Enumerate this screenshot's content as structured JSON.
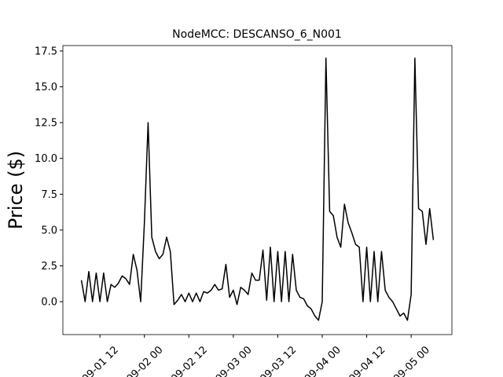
{
  "chart_data": {
    "type": "line",
    "title": "NodeMCC: DESCANSO_6_N001",
    "y_label": "Price ($)",
    "x": [
      "09-01 07",
      "09-01 08",
      "09-01 09",
      "09-01 10",
      "09-01 11",
      "09-01 12",
      "09-01 13",
      "09-01 14",
      "09-01 15",
      "09-01 16",
      "09-01 17",
      "09-01 18",
      "09-01 19",
      "09-01 20",
      "09-01 21",
      "09-01 22",
      "09-01 23",
      "09-02 00",
      "09-02 01",
      "09-02 02",
      "09-02 03",
      "09-02 04",
      "09-02 05",
      "09-02 06",
      "09-02 07",
      "09-02 08",
      "09-02 09",
      "09-02 10",
      "09-02 11",
      "09-02 12",
      "09-02 13",
      "09-02 14",
      "09-02 15",
      "09-02 16",
      "09-02 17",
      "09-02 18",
      "09-02 19",
      "09-02 20",
      "09-02 21",
      "09-02 22",
      "09-02 23",
      "09-03 00",
      "09-03 01",
      "09-03 02",
      "09-03 03",
      "09-03 04",
      "09-03 05",
      "09-03 06",
      "09-03 07",
      "09-03 08",
      "09-03 09",
      "09-03 10",
      "09-03 11",
      "09-03 12",
      "09-03 13",
      "09-03 14",
      "09-03 15",
      "09-03 16",
      "09-03 17",
      "09-03 18",
      "09-03 19",
      "09-03 20",
      "09-03 21",
      "09-03 22",
      "09-03 23",
      "09-04 00",
      "09-04 01",
      "09-04 02",
      "09-04 03",
      "09-04 04",
      "09-04 05",
      "09-04 06",
      "09-04 07",
      "09-04 08",
      "09-04 09",
      "09-04 10",
      "09-04 11",
      "09-04 12",
      "09-04 13",
      "09-04 14",
      "09-04 15",
      "09-04 16",
      "09-04 17",
      "09-04 18",
      "09-04 19",
      "09-04 20",
      "09-04 21",
      "09-04 22",
      "09-04 23",
      "09-05 00",
      "09-05 01",
      "09-05 02",
      "09-05 03",
      "09-05 04",
      "09-05 05",
      "09-05 06"
    ],
    "series": [
      {
        "color": "#000000",
        "values": [
          1.5,
          0,
          2.1,
          0,
          2.0,
          0,
          2.0,
          0,
          1.2,
          1.0,
          1.3,
          1.8,
          1.6,
          1.2,
          3.3,
          2.2,
          0,
          5.5,
          12.5,
          4.5,
          3.5,
          3.0,
          3.3,
          4.5,
          3.5,
          -0.2,
          0.1,
          0.5,
          0,
          0.6,
          0,
          0.6,
          0,
          0.7,
          0.6,
          0.8,
          1.2,
          0.8,
          0.9,
          2.6,
          0.3,
          0.8,
          -0.2,
          1.0,
          0.8,
          0.5,
          2.0,
          1.5,
          1.5,
          3.6,
          0.1,
          3.8,
          0,
          3.5,
          0,
          3.5,
          0,
          3.3,
          0.8,
          0.3,
          0.2,
          -0.3,
          -0.5,
          -1.0,
          -1.3,
          0,
          17.0,
          6.3,
          6.0,
          4.5,
          3.8,
          6.8,
          5.5,
          4.8,
          4.0,
          3.8,
          0,
          3.8,
          0,
          3.5,
          0,
          3.5,
          0.8,
          0.3,
          0,
          -0.5,
          -1.0,
          -0.8,
          -1.3,
          0.5,
          17.0,
          6.5,
          6.3,
          4.0,
          6.5,
          4.3
        ]
      }
    ],
    "xlim": [
      "09-01 02",
      "09-05 11"
    ],
    "xticks": [
      "09-01 12",
      "09-02 00",
      "09-02 12",
      "09-03 00",
      "09-03 12",
      "09-04 00",
      "09-04 12",
      "09-05 00"
    ],
    "ylim": [
      -2.3,
      17.88
    ],
    "yticks": [
      {
        "value": 0,
        "label": "0.0"
      },
      2.5,
      {
        "value": 5,
        "label": "5.0"
      },
      7.5,
      {
        "value": 10,
        "label": "10.0"
      },
      12.5,
      {
        "value": 15,
        "label": "15.0"
      },
      17.5
    ]
  }
}
